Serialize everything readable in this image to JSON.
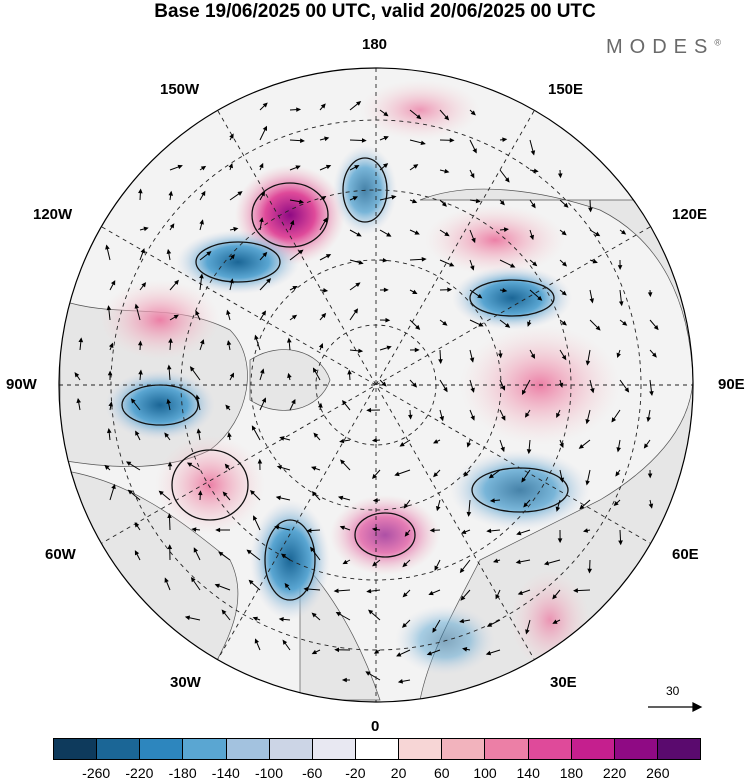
{
  "title": "Base 19/06/2025 00 UTC, valid 20/06/2025 00 UTC",
  "brand": "MODES",
  "brand_mark": "®",
  "longitude_labels": {
    "top": "180",
    "bottom": "0",
    "left": "90W",
    "right": "90E",
    "upper_left_1": "150W",
    "upper_left_2": "120W",
    "upper_right_1": "150E",
    "upper_right_2": "120E",
    "lower_left_1": "60W",
    "lower_left_2": "30W",
    "lower_right_1": "60E",
    "lower_right_2": "30E"
  },
  "reference_vector": {
    "label": "30"
  },
  "colorbar": {
    "colors": [
      "#0e3a5c",
      "#1b6696",
      "#2d86be",
      "#5aa6d2",
      "#a3c2df",
      "#ccd5e6",
      "#e8e8f2",
      "#ffffff",
      "#f7d6d6",
      "#f2b3bd",
      "#ec7fa6",
      "#df4a9a",
      "#c51f8e",
      "#8f0a84",
      "#5a0a6e"
    ],
    "tick_labels": [
      "-260",
      "-220",
      "-180",
      "-140",
      "-100",
      "-60",
      "-20",
      "20",
      "60",
      "100",
      "140",
      "180",
      "220",
      "260"
    ]
  },
  "map": {
    "projection": "north-polar-stereographic",
    "field": "shaded anomaly with contours and wind vectors",
    "graticule_style": "dashed",
    "land_color": "#e6e6e6"
  }
}
